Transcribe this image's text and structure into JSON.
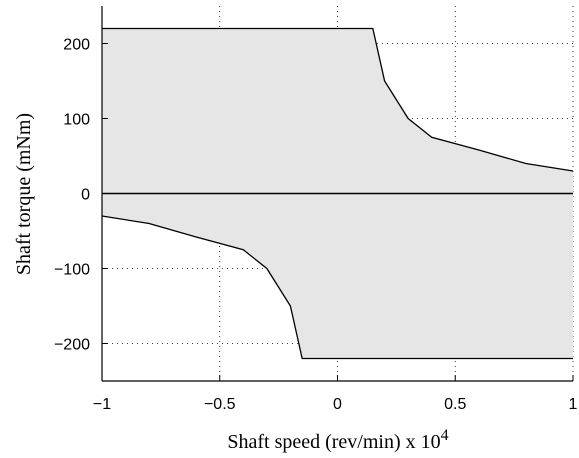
{
  "chart_data": {
    "type": "area",
    "title": "",
    "xlabel": "Shaft speed (rev/min) x 10",
    "xlabel_exponent": "4",
    "ylabel": "Shaft torque (mNm)",
    "xlim": [
      -1,
      1
    ],
    "ylim": [
      -250,
      250
    ],
    "grid": true,
    "grid_style": "dotted",
    "fill_color": "#e6e6e6",
    "line_color": "#000000",
    "x_ticks": [
      -1,
      -0.5,
      0,
      0.5,
      1
    ],
    "x_tick_labels": [
      "−1",
      "−0.5",
      "0",
      "0.5",
      "1"
    ],
    "y_ticks": [
      -200,
      -100,
      0,
      100,
      200
    ],
    "y_tick_labels": [
      "−200",
      "−100",
      "0",
      "100",
      "200"
    ],
    "series": [
      {
        "role": "upper-boundary",
        "x": [
          -1,
          0.15,
          0.2,
          0.3,
          0.4,
          0.6,
          0.8,
          1.0
        ],
        "y": [
          220,
          220,
          150,
          100,
          75,
          58,
          40,
          30
        ]
      },
      {
        "role": "lower-boundary",
        "x": [
          -1,
          -0.8,
          -0.6,
          -0.4,
          -0.3,
          -0.2,
          -0.15,
          1.0
        ],
        "y": [
          -30,
          -40,
          -58,
          -75,
          -100,
          -150,
          -220,
          -220
        ]
      }
    ],
    "reference_line_y": 0
  }
}
